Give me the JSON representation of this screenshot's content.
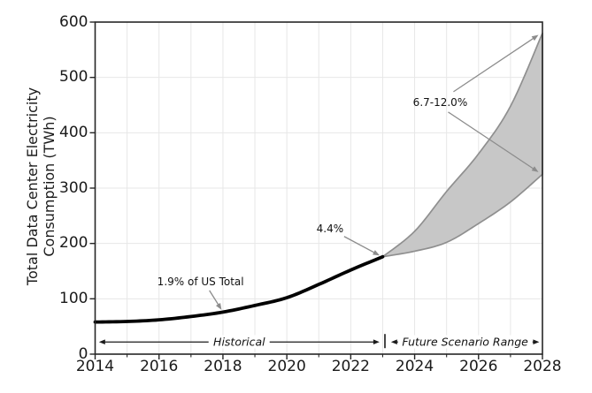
{
  "chart_data": {
    "type": "area",
    "title": "",
    "ylabel": "Total Data Center Electricity Consumption (TWh)",
    "ylabel_lines": [
      "Total Data Center Electricity",
      "Consumption (TWh)"
    ],
    "xlabel": "",
    "xlim": [
      2014,
      2028
    ],
    "ylim": [
      0,
      600
    ],
    "x_ticks": [
      2014,
      2016,
      2018,
      2020,
      2022,
      2024,
      2026,
      2028
    ],
    "x_minor_ticks": [
      2015,
      2017,
      2019,
      2021,
      2023,
      2025,
      2027
    ],
    "y_ticks": [
      0,
      100,
      200,
      300,
      400,
      500,
      600
    ],
    "grid": {
      "vertical_every_year": true,
      "horizontal_every": 100,
      "style": "light-gray"
    },
    "legend": null,
    "series": [
      {
        "name": "Historical",
        "type": "line",
        "color": "#000000",
        "x": [
          2014,
          2015,
          2016,
          2017,
          2018,
          2019,
          2020,
          2021,
          2022,
          2023
        ],
        "values": [
          58,
          59,
          62,
          68,
          76,
          88,
          102,
          126,
          152,
          176
        ]
      },
      {
        "name": "Future Scenario Range",
        "type": "band",
        "fill_color": "#c7c7c7",
        "edge_color": "#8f8f8f",
        "x": [
          2023,
          2024,
          2025,
          2026,
          2027,
          2028
        ],
        "lower": [
          176,
          186,
          202,
          236,
          275,
          325
        ],
        "upper": [
          176,
          222,
          294,
          362,
          448,
          580
        ]
      }
    ],
    "annotations": [
      {
        "text": "1.9% of US Total",
        "target": [
          2018,
          76
        ],
        "label_pos": [
          2017.3,
          131
        ]
      },
      {
        "text": "4.4%",
        "target": [
          2023,
          176
        ],
        "label_pos": [
          2021.35,
          227
        ]
      },
      {
        "text": "6.7-12.0%",
        "target": [
          2028,
          580
        ],
        "target2": [
          2028,
          325
        ],
        "label_pos": [
          2024.8,
          455
        ]
      }
    ],
    "range_markers": [
      {
        "text": "Historical",
        "from": 2014.12,
        "to": 2022.9,
        "y": 22
      },
      {
        "text": "Future Scenario Range",
        "from": 2023.26,
        "to": 2027.9,
        "y": 22
      }
    ],
    "range_divider_x": 2023.07
  },
  "colors": {
    "background": "#ffffff",
    "grid": "#e7e7e7",
    "spine": "#262626",
    "tick_text": "#1a1a1a",
    "annotation_arrow": "#8c8c8c",
    "range_arrow": "#1a1a1a",
    "historical_line": "#000000",
    "band_fill": "#c7c7c7",
    "band_edge": "#8f8f8f"
  }
}
